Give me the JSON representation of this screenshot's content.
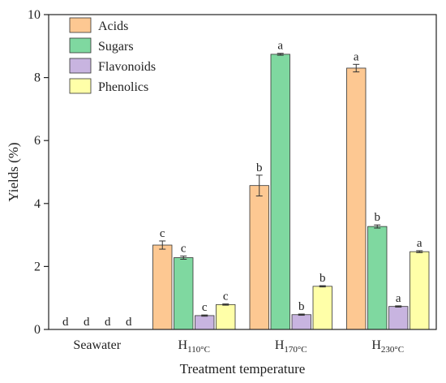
{
  "chart_data": {
    "type": "bar",
    "xlabel": "Treatment temperature",
    "ylabel": "Yields (%)",
    "ylim": [
      0,
      10
    ],
    "yticks": [
      0,
      2,
      4,
      6,
      8,
      10
    ],
    "legend_position": "top-left",
    "categories": [
      {
        "main": "Seawater",
        "sub": ""
      },
      {
        "main": "H",
        "sub": "110°C"
      },
      {
        "main": "H",
        "sub": "170°C"
      },
      {
        "main": "H",
        "sub": "230°C"
      }
    ],
    "series": [
      {
        "name": "Acids",
        "color": "#FDC892",
        "values": [
          0,
          2.68,
          4.57,
          8.3
        ],
        "errors": [
          0,
          0.13,
          0.33,
          0.12
        ],
        "letters": [
          "d",
          "c",
          "b",
          "a"
        ]
      },
      {
        "name": "Sugars",
        "color": "#7FD8A0",
        "values": [
          0,
          2.28,
          8.74,
          3.27
        ],
        "errors": [
          0,
          0.05,
          0.03,
          0.05
        ],
        "letters": [
          "d",
          "c",
          "a",
          "b"
        ]
      },
      {
        "name": "Flavonoids",
        "color": "#C8B4E0",
        "values": [
          0,
          0.44,
          0.47,
          0.73
        ],
        "errors": [
          0,
          0.02,
          0.02,
          0.02
        ],
        "letters": [
          "d",
          "c",
          "b",
          "a"
        ]
      },
      {
        "name": "Phenolics",
        "color": "#FFFFA8",
        "values": [
          0,
          0.79,
          1.37,
          2.47
        ],
        "errors": [
          0,
          0.02,
          0.02,
          0.03
        ],
        "letters": [
          "d",
          "c",
          "b",
          "a"
        ]
      }
    ]
  }
}
